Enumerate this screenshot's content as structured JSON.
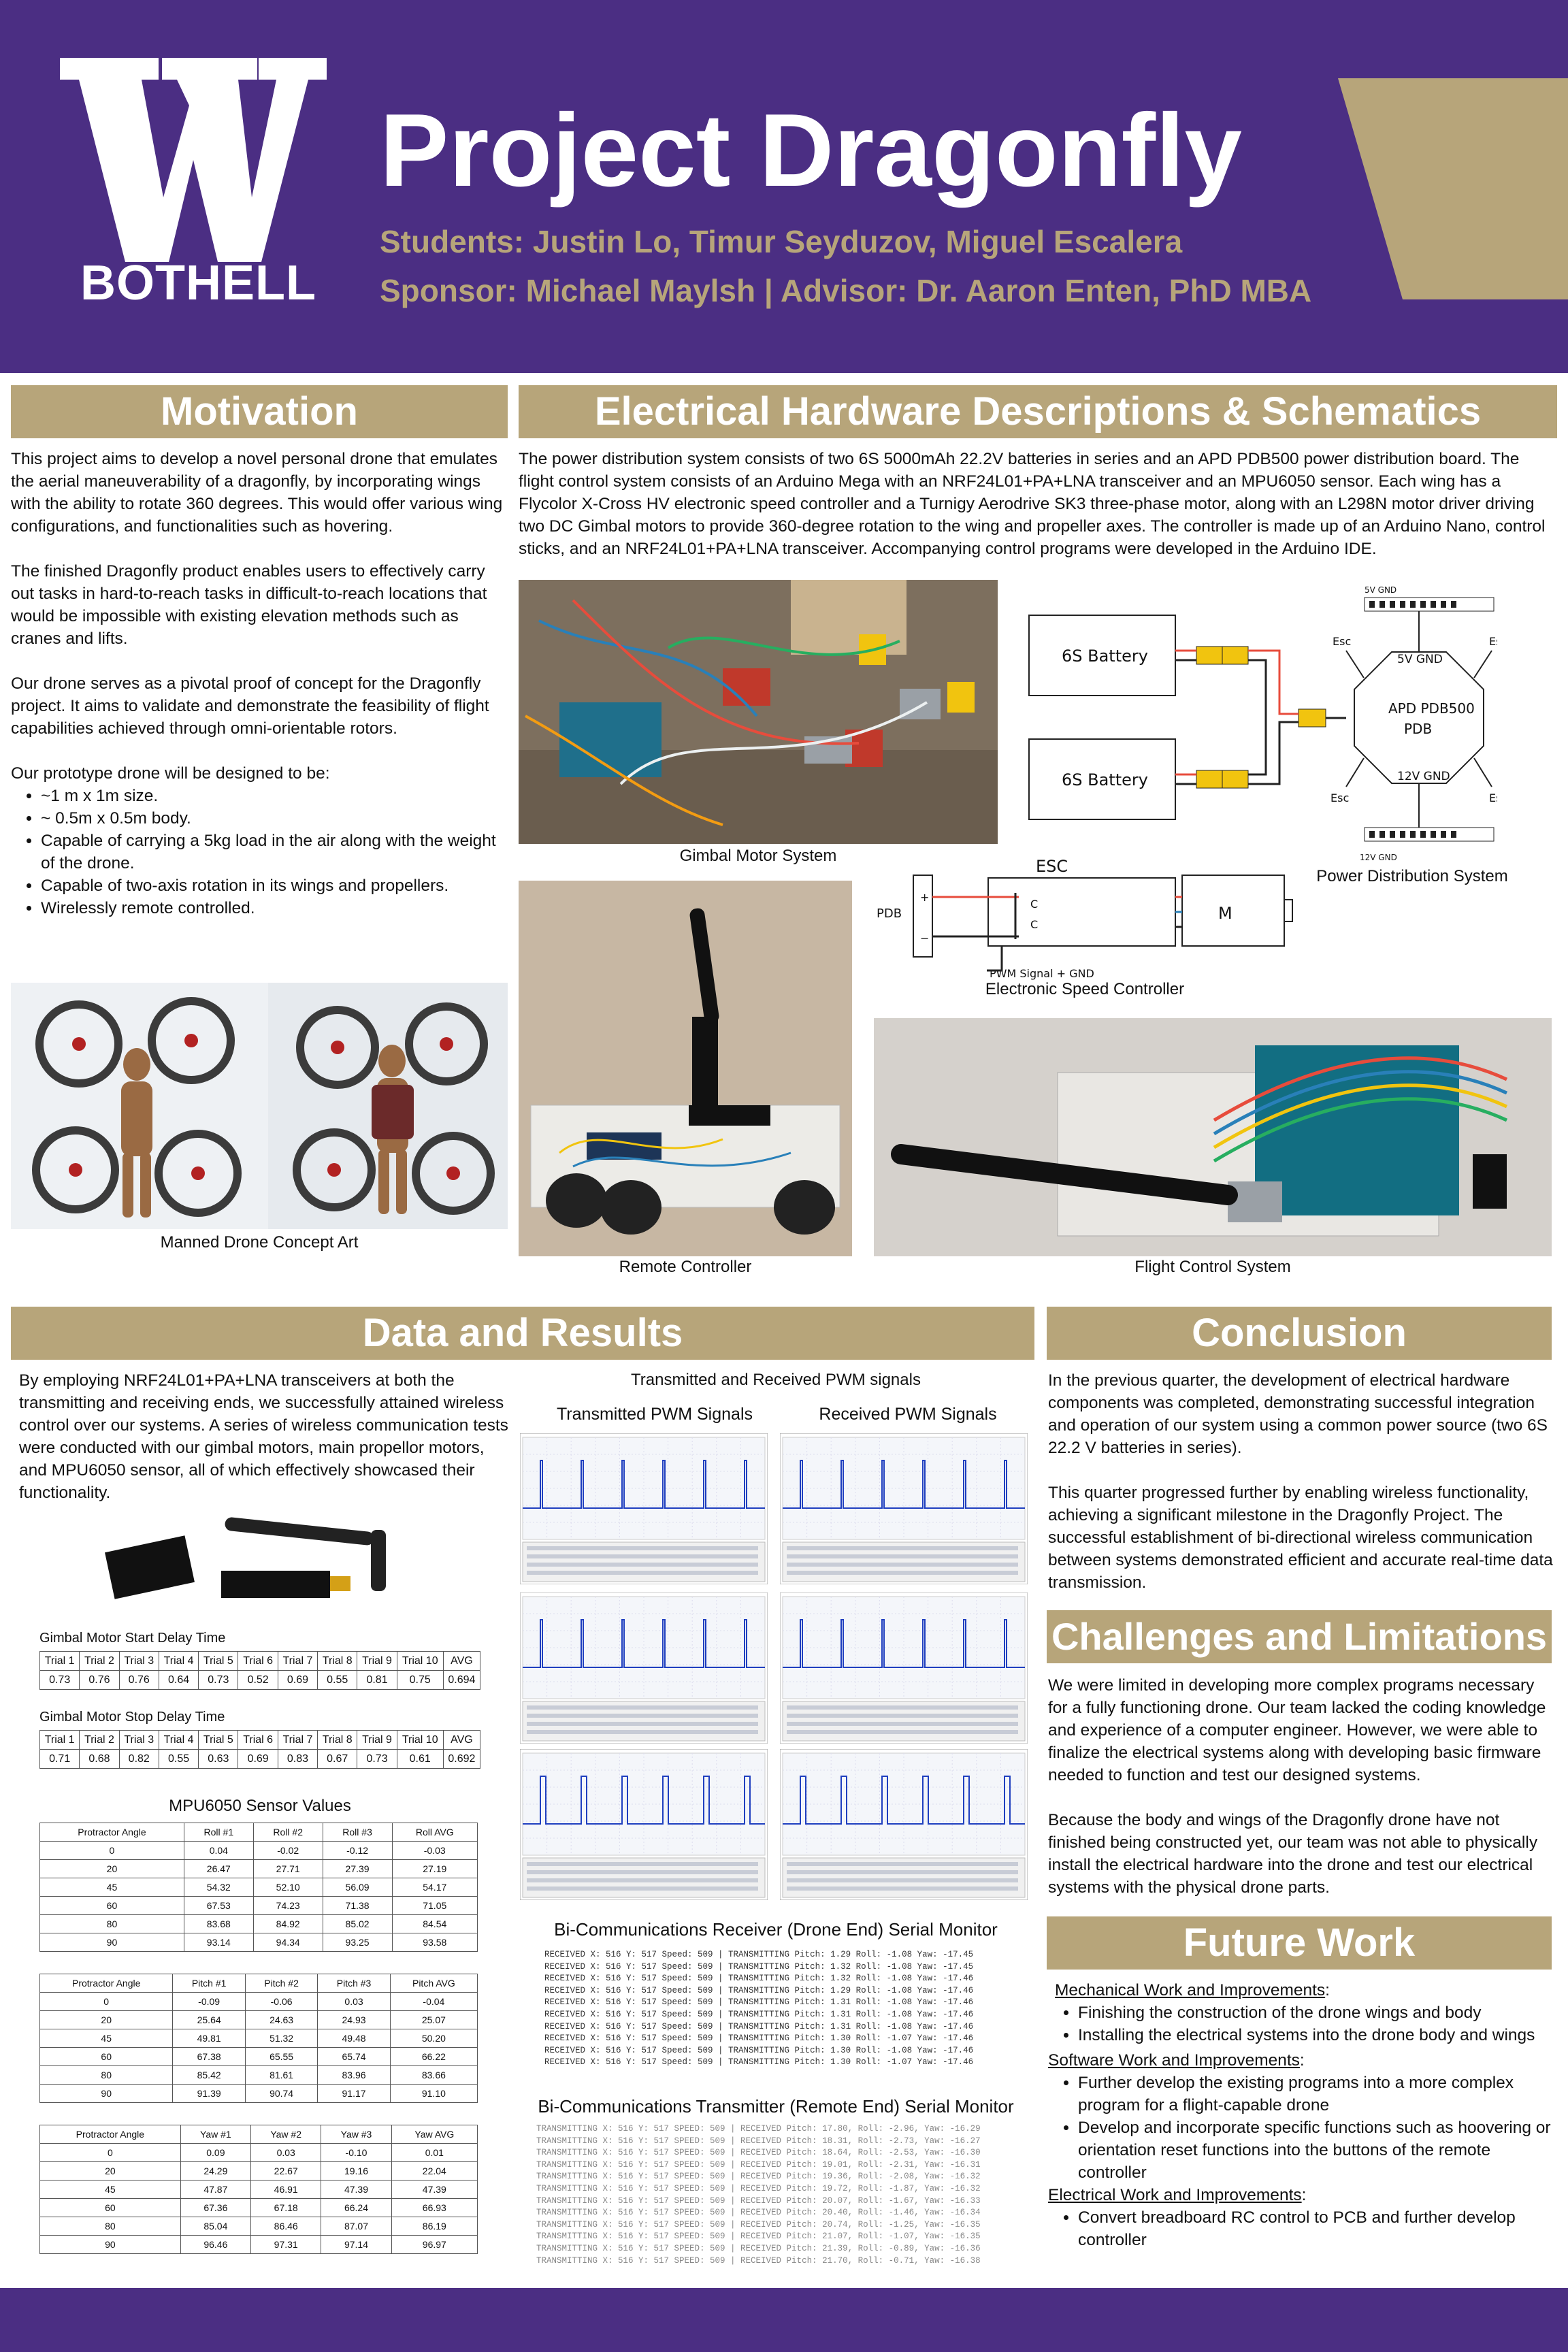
{
  "header": {
    "logo_letter": "W",
    "logo_text": "BOTHELL",
    "title": "Project Dragonfly",
    "students": "Students: Justin Lo, Timur Seyduzov, Miguel Escalera",
    "sponsor": "Sponsor: Michael Maylsh | Advisor: Dr. Aaron Enten, PhD MBA"
  },
  "colors": {
    "purple": "#4b2e83",
    "gold": "#b7a57a"
  },
  "motivation": {
    "heading": "Motivation",
    "p1": "This project aims to develop a novel personal drone that emulates the aerial maneuverability of a dragonfly, by incorporating wings with the ability to rotate 360 degrees. This would offer various wing configurations, and functionalities such as hovering.",
    "p2": "The finished Dragonfly product enables users to effectively carry out tasks in hard-to-reach tasks in difficult-to-reach locations that would be impossible with existing elevation methods such as cranes and lifts.",
    "p3": "Our drone serves as a pivotal proof of concept for the Dragonfly project. It aims to validate and demonstrate the feasibility of flight capabilities achieved through omni-orientable rotors.",
    "list_intro": "Our prototype drone will be designed to be:",
    "list": [
      "~1 m x 1m size.",
      "~ 0.5m x 0.5m body.",
      "Capable of carrying a 5kg load in the air along with the weight of the drone.",
      "Capable of two-axis rotation in its wings and propellers.",
      "Wirelessly remote controlled."
    ],
    "caption": "Manned Drone Concept Art"
  },
  "electrical": {
    "heading": "Electrical Hardware Descriptions & Schematics",
    "description": "The power distribution system consists of two 6S 5000mAh 22.2V batteries in series and an APD PDB500 power distribution board. The flight control system consists of an Arduino Mega with an NRF24L01+PA+LNA transceiver and an MPU6050 sensor. Each wing has a Flycolor X-Cross HV electronic speed controller and a Turnigy Aerodrive SK3 three-phase motor, along with an L298N motor driver driving two DC Gimbal motors to provide 360-degree rotation to the wing and propeller axes. The controller is made up of an Arduino Nano, control sticks, and an NRF24L01+PA+LNA transceiver. Accompanying control programs were developed in the Arduino IDE.",
    "gimbal_caption": "Gimbal Motor System",
    "pds_caption": "Power Distribution System",
    "esc_caption": "Electronic Speed Controller",
    "remote_caption": "Remote Controller",
    "fcs_caption": "Flight Control System",
    "pds_labels": {
      "battery1": "6S Battery",
      "battery2": "6S Battery",
      "pdb": "APD PDB500",
      "pdb2": "PDB",
      "fiveV": "5V GND",
      "twelveV": "12V GND",
      "esc": "Esc",
      "top_pins": "5V GND",
      "bottom_pins": "12V GND"
    },
    "esc_labels": {
      "title": "ESC",
      "pdb": "PDB",
      "plus": "+",
      "minus": "−",
      "c1": "C",
      "c2": "C",
      "motor": "M",
      "pwm": "PWM Signal + GND"
    }
  },
  "data": {
    "heading": "Data and Results",
    "intro": "By employing NRF24L01+PA+LNA transceivers at both the transmitting and receiving ends, we successfully attained wireless control over our systems. A series of wireless communication tests were conducted with our gimbal motors, main propellor motors, and MPU6050 sensor, all of which effectively showcased their functionality.",
    "start_title": "Gimbal Motor Start Delay Time",
    "stop_title": "Gimbal Motor Stop Delay Time",
    "trial_headers": [
      "Trial 1",
      "Trial 2",
      "Trial 3",
      "Trial 4",
      "Trial 5",
      "Trial 6",
      "Trial 7",
      "Trial 8",
      "Trial 9",
      "Trial 10",
      "AVG"
    ],
    "start_values": [
      "0.73",
      "0.76",
      "0.76",
      "0.64",
      "0.73",
      "0.52",
      "0.69",
      "0.55",
      "0.81",
      "0.75",
      "0.694"
    ],
    "stop_values": [
      "0.71",
      "0.68",
      "0.82",
      "0.55",
      "0.63",
      "0.69",
      "0.83",
      "0.67",
      "0.73",
      "0.61",
      "0.692"
    ],
    "mpu_title": "MPU6050 Sensor Values",
    "roll_headers": [
      "Protractor Angle",
      "Roll #1",
      "Roll #2",
      "Roll #3",
      "Roll AVG"
    ],
    "roll_rows": [
      [
        "0",
        "0.04",
        "-0.02",
        "-0.12",
        "-0.03"
      ],
      [
        "20",
        "26.47",
        "27.71",
        "27.39",
        "27.19"
      ],
      [
        "45",
        "54.32",
        "52.10",
        "56.09",
        "54.17"
      ],
      [
        "60",
        "67.53",
        "74.23",
        "71.38",
        "71.05"
      ],
      [
        "80",
        "83.68",
        "84.92",
        "85.02",
        "84.54"
      ],
      [
        "90",
        "93.14",
        "94.34",
        "93.25",
        "93.58"
      ]
    ],
    "pitch_headers": [
      "Protractor Angle",
      "Pitch #1",
      "Pitch #2",
      "Pitch #3",
      "Pitch AVG"
    ],
    "pitch_rows": [
      [
        "0",
        "-0.09",
        "-0.06",
        "0.03",
        "-0.04"
      ],
      [
        "20",
        "25.64",
        "24.63",
        "24.93",
        "25.07"
      ],
      [
        "45",
        "49.81",
        "51.32",
        "49.48",
        "50.20"
      ],
      [
        "60",
        "67.38",
        "65.55",
        "65.74",
        "66.22"
      ],
      [
        "80",
        "85.42",
        "81.61",
        "83.96",
        "83.66"
      ],
      [
        "90",
        "91.39",
        "90.74",
        "91.17",
        "91.10"
      ]
    ],
    "yaw_headers": [
      "Protractor Angle",
      "Yaw #1",
      "Yaw #2",
      "Yaw #3",
      "Yaw AVG"
    ],
    "yaw_rows": [
      [
        "0",
        "0.09",
        "0.03",
        "-0.10",
        "0.01"
      ],
      [
        "20",
        "24.29",
        "22.67",
        "19.16",
        "22.04"
      ],
      [
        "45",
        "47.87",
        "46.91",
        "47.39",
        "47.39"
      ],
      [
        "60",
        "67.36",
        "67.18",
        "66.24",
        "66.93"
      ],
      [
        "80",
        "85.04",
        "86.46",
        "87.07",
        "86.19"
      ],
      [
        "90",
        "96.46",
        "97.31",
        "97.14",
        "96.97"
      ]
    ],
    "pwm_title": "Transmitted and Received PWM signals",
    "tx_title": "Transmitted PWM Signals",
    "rx_title": "Received PWM Signals",
    "receiver_title": "Bi-Communications Receiver (Drone End) Serial Monitor",
    "receiver_lines": [
      "RECEIVED X: 516 Y: 517 Speed: 509 | TRANSMITTING Pitch: 1.29 Roll: -1.08 Yaw: -17.45",
      "RECEIVED X: 516 Y: 517 Speed: 509 | TRANSMITTING Pitch: 1.32 Roll: -1.08 Yaw: -17.45",
      "RECEIVED X: 516 Y: 517 Speed: 509 | TRANSMITTING Pitch: 1.32 Roll: -1.08 Yaw: -17.46",
      "RECEIVED X: 516 Y: 517 Speed: 509 | TRANSMITTING Pitch: 1.29 Roll: -1.08 Yaw: -17.46",
      "RECEIVED X: 516 Y: 517 Speed: 509 | TRANSMITTING Pitch: 1.31 Roll: -1.08 Yaw: -17.46",
      "RECEIVED X: 516 Y: 517 Speed: 509 | TRANSMITTING Pitch: 1.31 Roll: -1.08 Yaw: -17.46",
      "RECEIVED X: 516 Y: 517 Speed: 509 | TRANSMITTING Pitch: 1.31 Roll: -1.08 Yaw: -17.46",
      "RECEIVED X: 516 Y: 517 Speed: 509 | TRANSMITTING Pitch: 1.30 Roll: -1.07 Yaw: -17.46",
      "RECEIVED X: 516 Y: 517 Speed: 509 | TRANSMITTING Pitch: 1.30 Roll: -1.08 Yaw: -17.46",
      "RECEIVED X: 516 Y: 517 Speed: 509 | TRANSMITTING Pitch: 1.30 Roll: -1.07 Yaw: -17.46"
    ],
    "transmitter_title": "Bi-Communications Transmitter (Remote End) Serial Monitor",
    "transmitter_lines": [
      "TRANSMITTING X: 516 Y: 517 SPEED: 509 | RECEIVED Pitch: 17.80, Roll: -2.96, Yaw: -16.29",
      "TRANSMITTING X: 516 Y: 517 SPEED: 509 | RECEIVED Pitch: 18.31, Roll: -2.73, Yaw: -16.27",
      "TRANSMITTING X: 516 Y: 517 SPEED: 509 | RECEIVED Pitch: 18.64, Roll: -2.53, Yaw: -16.30",
      "TRANSMITTING X: 516 Y: 517 SPEED: 509 | RECEIVED Pitch: 19.01, Roll: -2.31, Yaw: -16.31",
      "TRANSMITTING X: 516 Y: 517 SPEED: 509 | RECEIVED Pitch: 19.36, Roll: -2.08, Yaw: -16.32",
      "TRANSMITTING X: 516 Y: 517 SPEED: 509 | RECEIVED Pitch: 19.72, Roll: -1.87, Yaw: -16.32",
      "TRANSMITTING X: 516 Y: 517 SPEED: 509 | RECEIVED Pitch: 20.07, Roll: -1.67, Yaw: -16.33",
      "TRANSMITTING X: 516 Y: 517 SPEED: 509 | RECEIVED Pitch: 20.40, Roll: -1.46, Yaw: -16.34",
      "TRANSMITTING X: 516 Y: 517 SPEED: 509 | RECEIVED Pitch: 20.74, Roll: -1.25, Yaw: -16.35",
      "TRANSMITTING X: 516 Y: 517 SPEED: 509 | RECEIVED Pitch: 21.07, Roll: -1.07, Yaw: -16.35",
      "TRANSMITTING X: 516 Y: 517 SPEED: 509 | RECEIVED Pitch: 21.39, Roll: -0.89, Yaw: -16.36",
      "TRANSMITTING X: 516 Y: 517 SPEED: 509 | RECEIVED Pitch: 21.70, Roll: -0.71, Yaw: -16.38"
    ]
  },
  "conclusion": {
    "heading": "Conclusion",
    "p1": "In the previous quarter, the development of electrical hardware components was completed, demonstrating successful integration and operation of our system using a common power source (two 6S 22.2 V batteries in series).",
    "p2": "This quarter progressed further by enabling wireless functionality, achieving a significant milestone in the Dragonfly Project. The successful establishment of bi-directional wireless communication between systems demonstrated efficient and accurate real-time data transmission."
  },
  "challenges": {
    "heading": "Challenges and Limitations",
    "p1": "We were limited in developing more complex programs necessary for a fully functioning drone. Our team lacked the coding knowledge and experience of a computer engineer. However, we were able to finalize the electrical systems along with developing basic firmware needed to function and test our designed systems.",
    "p2": "Because the body and wings of the Dragonfly drone have not finished being constructed yet, our team was not able to physically install the electrical hardware into the drone and test our electrical systems with the physical drone parts."
  },
  "future": {
    "heading": "Future Work",
    "mech_title": "Mechanical Work and Improvements",
    "mech_items": [
      "Finishing the construction of the drone wings and body",
      "Installing the electrical systems into the drone body and wings"
    ],
    "soft_title": "Software Work and Improvements",
    "soft_items": [
      "Further develop the existing programs into a more complex program for a flight-capable drone",
      "Develop and incorporate specific functions such as hoovering or orientation reset functions into the buttons of the remote controller"
    ],
    "elec_title": "Electrical Work and Improvements",
    "elec_items": [
      "Convert breadboard RC control to PCB and further develop controller"
    ],
    "colon": ":"
  }
}
